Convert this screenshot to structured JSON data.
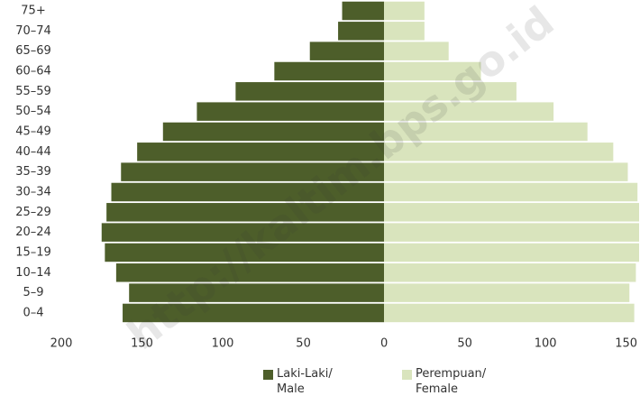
{
  "chart_data": {
    "type": "pyramid",
    "categories": [
      "75+",
      "70–74",
      "65–69",
      "60–64",
      "55–59",
      "50–54",
      "45–49",
      "40–44",
      "35–39",
      "30–34",
      "25–29",
      "20–24",
      "15–19",
      "10–14",
      "5–9",
      "0–4"
    ],
    "series": [
      {
        "name": "Laki-Laki/ Male",
        "color": "#4d5e2a",
        "side": "left",
        "values": [
          26,
          28.5,
          46,
          68,
          92,
          116,
          137,
          153,
          163,
          169,
          172,
          175,
          173,
          166,
          158,
          162
        ]
      },
      {
        "name": "Perempuan/ Female",
        "color": "#d9e4bd",
        "side": "right",
        "values": [
          25,
          25,
          40,
          60,
          82,
          105,
          126,
          142,
          151,
          157,
          158,
          158,
          158,
          156,
          152,
          155
        ]
      }
    ],
    "xlim": [
      -200,
      158
    ],
    "xticks": [
      {
        "value": -200,
        "label": "200"
      },
      {
        "value": -150,
        "label": "150"
      },
      {
        "value": -100,
        "label": "100"
      },
      {
        "value": -50,
        "label": "50"
      },
      0,
      50,
      100,
      150
    ],
    "watermark": "http://kaltim.bps.go.id"
  }
}
